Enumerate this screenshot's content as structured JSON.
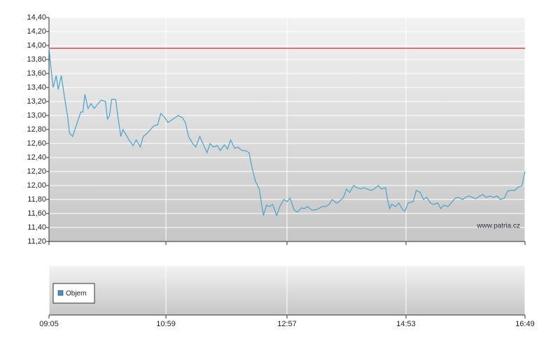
{
  "chart_data": [
    {
      "type": "line",
      "xlim": [
        545,
        1009
      ],
      "xticks": [
        {
          "value": 545,
          "label": "09:05"
        },
        {
          "value": 659,
          "label": "10:59"
        },
        {
          "value": 777,
          "label": "12:57"
        },
        {
          "value": 893,
          "label": "14:53"
        },
        {
          "value": 1009,
          "label": "16:49"
        }
      ],
      "ylim": [
        11.2,
        14.4
      ],
      "yticks": [
        {
          "value": 11.2,
          "label": "11,20"
        },
        {
          "value": 11.4,
          "label": "11,40"
        },
        {
          "value": 11.6,
          "label": "11,60"
        },
        {
          "value": 11.8,
          "label": "11,80"
        },
        {
          "value": 12.0,
          "label": "12,00"
        },
        {
          "value": 12.2,
          "label": "12,20"
        },
        {
          "value": 12.4,
          "label": "12,40"
        },
        {
          "value": 12.6,
          "label": "12,60"
        },
        {
          "value": 12.8,
          "label": "12,80"
        },
        {
          "value": 13.0,
          "label": "13,00"
        },
        {
          "value": 13.2,
          "label": "13,20"
        },
        {
          "value": 13.4,
          "label": "13,40"
        },
        {
          "value": 13.6,
          "label": "13,60"
        },
        {
          "value": 13.8,
          "label": "13,80"
        },
        {
          "value": 14.0,
          "label": "14,00"
        },
        {
          "value": 14.2,
          "label": "14,20"
        },
        {
          "value": 14.4,
          "label": "14,40"
        }
      ],
      "grid": true,
      "reference_value": 13.96,
      "reference_color": "#c00000",
      "annotation": "www.patria.cz",
      "x": [
        545,
        546,
        549,
        552,
        554,
        557,
        560,
        563,
        565,
        568,
        571,
        576,
        578,
        580,
        583,
        586,
        589,
        593,
        596,
        600,
        602,
        604,
        606,
        610,
        612,
        615,
        617,
        620,
        623,
        627,
        630,
        634,
        637,
        641,
        644,
        647,
        651,
        654,
        658,
        661,
        664,
        668,
        671,
        675,
        678,
        681,
        685,
        688,
        692,
        695,
        699,
        702,
        705,
        709,
        712,
        716,
        719,
        722,
        726,
        729,
        733,
        736,
        740,
        743,
        746,
        750,
        752,
        754,
        757,
        760,
        763,
        767,
        770,
        774,
        777,
        780,
        784,
        787,
        791,
        794,
        797,
        801,
        804,
        808,
        811,
        815,
        818,
        821,
        825,
        828,
        832,
        835,
        838,
        842,
        845,
        849,
        852,
        855,
        859,
        862,
        866,
        869,
        873,
        875,
        877,
        879,
        883,
        886,
        890,
        892,
        895,
        900,
        903,
        907,
        910,
        913,
        917,
        920,
        924,
        927,
        930,
        934,
        937,
        941,
        944,
        948,
        951,
        954,
        958,
        961,
        965,
        968,
        971,
        975,
        978,
        982,
        985,
        989,
        992,
        995,
        999,
        1002,
        1006,
        1008,
        1009
      ],
      "series": [
        {
          "color": "#4aa3c8",
          "values": [
            13.97,
            13.8,
            13.4,
            13.57,
            13.37,
            13.57,
            13.27,
            13.0,
            12.75,
            12.7,
            12.83,
            13.05,
            13.05,
            13.3,
            13.1,
            13.17,
            13.1,
            13.17,
            13.22,
            13.2,
            12.95,
            13.0,
            13.23,
            13.23,
            13.0,
            12.7,
            12.8,
            12.73,
            12.65,
            12.57,
            12.65,
            12.55,
            12.7,
            12.75,
            12.8,
            12.85,
            12.87,
            13.03,
            12.97,
            12.9,
            12.93,
            12.97,
            13.0,
            12.97,
            12.9,
            12.7,
            12.6,
            12.55,
            12.7,
            12.6,
            12.47,
            12.6,
            12.55,
            12.57,
            12.5,
            12.58,
            12.52,
            12.65,
            12.53,
            12.55,
            12.5,
            12.5,
            12.47,
            12.25,
            12.07,
            11.95,
            11.75,
            11.57,
            11.72,
            11.7,
            11.73,
            11.57,
            11.7,
            11.8,
            11.77,
            11.82,
            11.65,
            11.62,
            11.68,
            11.67,
            11.7,
            11.65,
            11.65,
            11.67,
            11.7,
            11.7,
            11.73,
            11.8,
            11.75,
            11.77,
            11.83,
            11.95,
            11.9,
            12.0,
            11.97,
            11.95,
            11.97,
            11.95,
            11.93,
            11.95,
            12.0,
            11.95,
            11.97,
            11.8,
            11.67,
            11.73,
            11.7,
            11.75,
            11.65,
            11.63,
            11.75,
            11.77,
            11.93,
            11.9,
            11.8,
            11.83,
            11.75,
            11.73,
            11.75,
            11.67,
            11.72,
            11.7,
            11.75,
            11.82,
            11.83,
            11.8,
            11.83,
            11.85,
            11.83,
            11.81,
            11.85,
            11.87,
            11.83,
            11.85,
            11.83,
            11.85,
            11.8,
            11.82,
            11.92,
            11.93,
            11.93,
            11.97,
            12.0,
            12.13,
            12.2
          ]
        }
      ]
    },
    {
      "type": "bar",
      "series": [
        {
          "name": "Objem",
          "color": "#4a90c0",
          "values": []
        }
      ]
    }
  ]
}
